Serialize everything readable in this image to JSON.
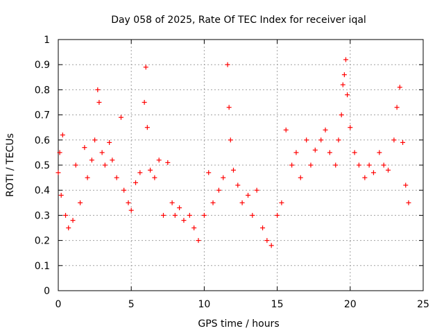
{
  "chart_data": {
    "type": "scatter",
    "title": "Day 058 of 2025, Rate Of TEC Index for receiver iqal",
    "xlabel": "GPS time / hours",
    "ylabel": "ROTI / TECUs",
    "xlim": [
      0,
      25
    ],
    "ylim": [
      0,
      1
    ],
    "xticks": [
      0,
      5,
      10,
      15,
      20,
      25
    ],
    "xtick_labels": [
      "0",
      "5",
      "10",
      "15",
      "20",
      "25"
    ],
    "yticks": [
      0,
      0.1,
      0.2,
      0.3,
      0.4,
      0.5,
      0.6,
      0.7,
      0.8,
      0.9,
      1
    ],
    "ytick_labels": [
      "0",
      "0.1",
      "0.2",
      "0.3",
      "0.4",
      "0.5",
      "0.6",
      "0.7",
      "0.8",
      "0.9",
      "1"
    ],
    "grid": true,
    "marker": "+",
    "color": "#ff0000",
    "series": [
      {
        "name": "ROTI",
        "x": [
          0.0,
          0.1,
          0.2,
          0.3,
          0.5,
          0.7,
          1.0,
          1.2,
          1.5,
          1.8,
          2.0,
          2.3,
          2.5,
          2.7,
          2.8,
          3.0,
          3.2,
          3.5,
          3.7,
          4.0,
          4.3,
          4.5,
          4.8,
          5.0,
          5.3,
          5.6,
          5.9,
          6.0,
          6.1,
          6.3,
          6.6,
          6.9,
          7.2,
          7.5,
          7.8,
          8.0,
          8.3,
          8.6,
          9.0,
          9.3,
          9.6,
          10.0,
          10.3,
          10.6,
          11.0,
          11.3,
          11.6,
          11.7,
          11.8,
          12.0,
          12.3,
          12.6,
          13.0,
          13.3,
          13.6,
          14.0,
          14.3,
          14.6,
          15.0,
          15.3,
          15.6,
          16.0,
          16.3,
          16.6,
          17.0,
          17.3,
          17.6,
          18.0,
          18.3,
          18.6,
          19.0,
          19.2,
          19.4,
          19.5,
          19.6,
          19.7,
          19.8,
          20.0,
          20.3,
          20.6,
          21.0,
          21.3,
          21.6,
          22.0,
          22.3,
          22.6,
          23.0,
          23.2,
          23.4,
          23.6,
          23.8,
          24.0
        ],
        "y": [
          0.47,
          0.55,
          0.38,
          0.62,
          0.3,
          0.25,
          0.28,
          0.5,
          0.35,
          0.57,
          0.45,
          0.52,
          0.6,
          0.8,
          0.75,
          0.55,
          0.5,
          0.59,
          0.52,
          0.45,
          0.69,
          0.4,
          0.35,
          0.32,
          0.43,
          0.47,
          0.75,
          0.89,
          0.65,
          0.48,
          0.45,
          0.52,
          0.3,
          0.51,
          0.35,
          0.3,
          0.33,
          0.28,
          0.3,
          0.25,
          0.2,
          0.3,
          0.47,
          0.35,
          0.4,
          0.45,
          0.9,
          0.73,
          0.6,
          0.48,
          0.42,
          0.35,
          0.38,
          0.3,
          0.4,
          0.25,
          0.2,
          0.18,
          0.3,
          0.35,
          0.64,
          0.5,
          0.55,
          0.45,
          0.6,
          0.5,
          0.56,
          0.6,
          0.64,
          0.55,
          0.5,
          0.6,
          0.7,
          0.82,
          0.86,
          0.92,
          0.78,
          0.65,
          0.55,
          0.5,
          0.45,
          0.5,
          0.47,
          0.55,
          0.5,
          0.48,
          0.6,
          0.73,
          0.81,
          0.59,
          0.42,
          0.35
        ]
      }
    ]
  }
}
